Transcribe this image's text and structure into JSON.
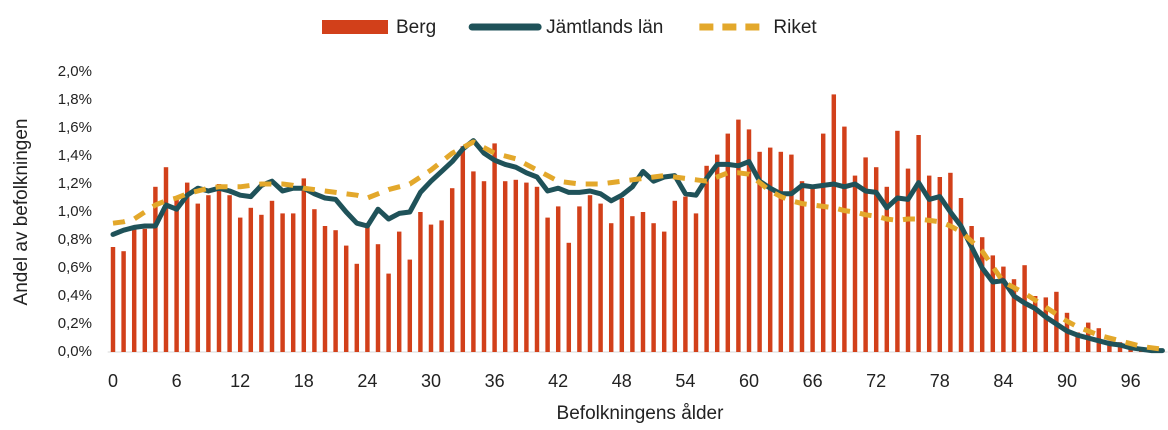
{
  "chart_data": {
    "type": "bar",
    "xlabel": "Befolkningens ålder",
    "ylabel": "Andel av befolkningen",
    "legend": "top",
    "categories": [
      "0",
      null,
      null,
      null,
      null,
      null,
      "6",
      null,
      null,
      null,
      null,
      null,
      "12",
      null,
      null,
      null,
      null,
      null,
      "18",
      null,
      null,
      null,
      null,
      null,
      "24",
      null,
      null,
      null,
      null,
      null,
      "30",
      null,
      null,
      null,
      null,
      null,
      "36",
      null,
      null,
      null,
      null,
      null,
      "42",
      null,
      null,
      null,
      null,
      null,
      "48",
      null,
      null,
      null,
      null,
      null,
      "54",
      null,
      null,
      null,
      null,
      null,
      "60",
      null,
      null,
      null,
      null,
      null,
      "66",
      null,
      null,
      null,
      null,
      null,
      "72",
      null,
      null,
      null,
      null,
      null,
      "78",
      null,
      null,
      null,
      null,
      null,
      "84",
      null,
      null,
      null,
      null,
      null,
      "90",
      null,
      null,
      null,
      null,
      null,
      "96",
      null,
      null,
      null
    ],
    "ylim": [
      0,
      2.0
    ],
    "yticks": [
      {
        "value": 0,
        "label": "0,0%"
      },
      {
        "value": 0.2,
        "label": "0,2%"
      },
      {
        "value": 0.4,
        "label": "0,4%"
      },
      {
        "value": 0.6,
        "label": "0,6%"
      },
      {
        "value": 0.8,
        "label": "0,8%"
      },
      {
        "value": 1.0,
        "label": "1,0%"
      },
      {
        "value": 1.2,
        "label": "1,2%"
      },
      {
        "value": 1.4,
        "label": "1,4%"
      },
      {
        "value": 1.6,
        "label": "1,6%"
      },
      {
        "value": 1.8,
        "label": "1,8%"
      },
      {
        "value": 2.0,
        "label": "2,0%"
      }
    ],
    "series": [
      {
        "name": "Berg",
        "type": "bar",
        "color": "#d2401a",
        "values": [
          0.75,
          0.72,
          0.88,
          0.88,
          1.18,
          1.32,
          1.1,
          1.21,
          1.06,
          1.12,
          1.2,
          1.12,
          0.96,
          1.03,
          0.98,
          1.08,
          0.99,
          0.99,
          1.24,
          1.02,
          0.9,
          0.87,
          0.76,
          0.63,
          0.9,
          0.77,
          0.56,
          0.86,
          0.66,
          1.0,
          0.91,
          0.94,
          1.17,
          1.47,
          1.29,
          1.22,
          1.49,
          1.22,
          1.23,
          1.21,
          1.18,
          0.96,
          1.04,
          0.78,
          1.04,
          1.12,
          1.06,
          0.92,
          1.1,
          0.97,
          1.0,
          0.92,
          0.86,
          1.08,
          1.11,
          0.99,
          1.33,
          1.41,
          1.56,
          1.66,
          1.59,
          1.43,
          1.46,
          1.43,
          1.41,
          1.22,
          1.19,
          1.56,
          1.84,
          1.61,
          1.26,
          1.39,
          1.32,
          1.18,
          1.58,
          1.31,
          1.55,
          1.26,
          1.25,
          1.28,
          1.1,
          0.9,
          0.82,
          0.69,
          0.61,
          0.52,
          0.62,
          0.4,
          0.39,
          0.43,
          0.28,
          0.14,
          0.21,
          0.17,
          0.08,
          0.07,
          0.06,
          0.03,
          0.02,
          0.01
        ]
      },
      {
        "name": "Jämtlands län",
        "type": "line",
        "color": "#1f5259",
        "dashed": false,
        "values": [
          0.84,
          0.87,
          0.89,
          0.9,
          0.9,
          1.05,
          1.02,
          1.12,
          1.17,
          1.15,
          1.17,
          1.15,
          1.12,
          1.11,
          1.19,
          1.22,
          1.15,
          1.17,
          1.17,
          1.13,
          1.1,
          1.09,
          1.0,
          0.92,
          0.9,
          1.02,
          0.95,
          0.99,
          1.0,
          1.14,
          1.22,
          1.29,
          1.36,
          1.45,
          1.51,
          1.42,
          1.37,
          1.34,
          1.32,
          1.28,
          1.25,
          1.15,
          1.17,
          1.14,
          1.14,
          1.15,
          1.13,
          1.08,
          1.12,
          1.18,
          1.29,
          1.22,
          1.25,
          1.26,
          1.13,
          1.12,
          1.24,
          1.34,
          1.34,
          1.33,
          1.36,
          1.22,
          1.17,
          1.13,
          1.13,
          1.19,
          1.18,
          1.19,
          1.2,
          1.18,
          1.2,
          1.15,
          1.14,
          1.03,
          1.1,
          1.09,
          1.21,
          1.09,
          1.11,
          1.0,
          0.9,
          0.75,
          0.6,
          0.5,
          0.51,
          0.4,
          0.35,
          0.31,
          0.25,
          0.2,
          0.15,
          0.12,
          0.1,
          0.08,
          0.06,
          0.05,
          0.03,
          0.02,
          0.01,
          0.01
        ]
      },
      {
        "name": "Riket",
        "type": "line",
        "color": "#e3a82b",
        "dashed": true,
        "values": [
          0.92,
          0.93,
          0.95,
          1.0,
          1.05,
          1.08,
          1.1,
          1.13,
          1.15,
          1.17,
          1.18,
          1.18,
          1.18,
          1.19,
          1.2,
          1.2,
          1.2,
          1.19,
          1.17,
          1.16,
          1.15,
          1.14,
          1.13,
          1.12,
          1.1,
          1.13,
          1.16,
          1.18,
          1.2,
          1.25,
          1.3,
          1.36,
          1.42,
          1.46,
          1.5,
          1.46,
          1.42,
          1.4,
          1.38,
          1.34,
          1.3,
          1.26,
          1.22,
          1.21,
          1.2,
          1.2,
          1.2,
          1.21,
          1.22,
          1.23,
          1.24,
          1.25,
          1.26,
          1.25,
          1.24,
          1.23,
          1.22,
          1.25,
          1.28,
          1.28,
          1.27,
          1.21,
          1.15,
          1.11,
          1.08,
          1.06,
          1.05,
          1.04,
          1.03,
          1.01,
          1.0,
          0.98,
          0.97,
          0.95,
          0.94,
          0.95,
          0.95,
          0.94,
          0.93,
          0.9,
          0.86,
          0.79,
          0.72,
          0.61,
          0.5,
          0.46,
          0.42,
          0.37,
          0.32,
          0.27,
          0.22,
          0.18,
          0.15,
          0.12,
          0.1,
          0.08,
          0.06,
          0.04,
          0.03,
          0.02
        ]
      }
    ]
  }
}
